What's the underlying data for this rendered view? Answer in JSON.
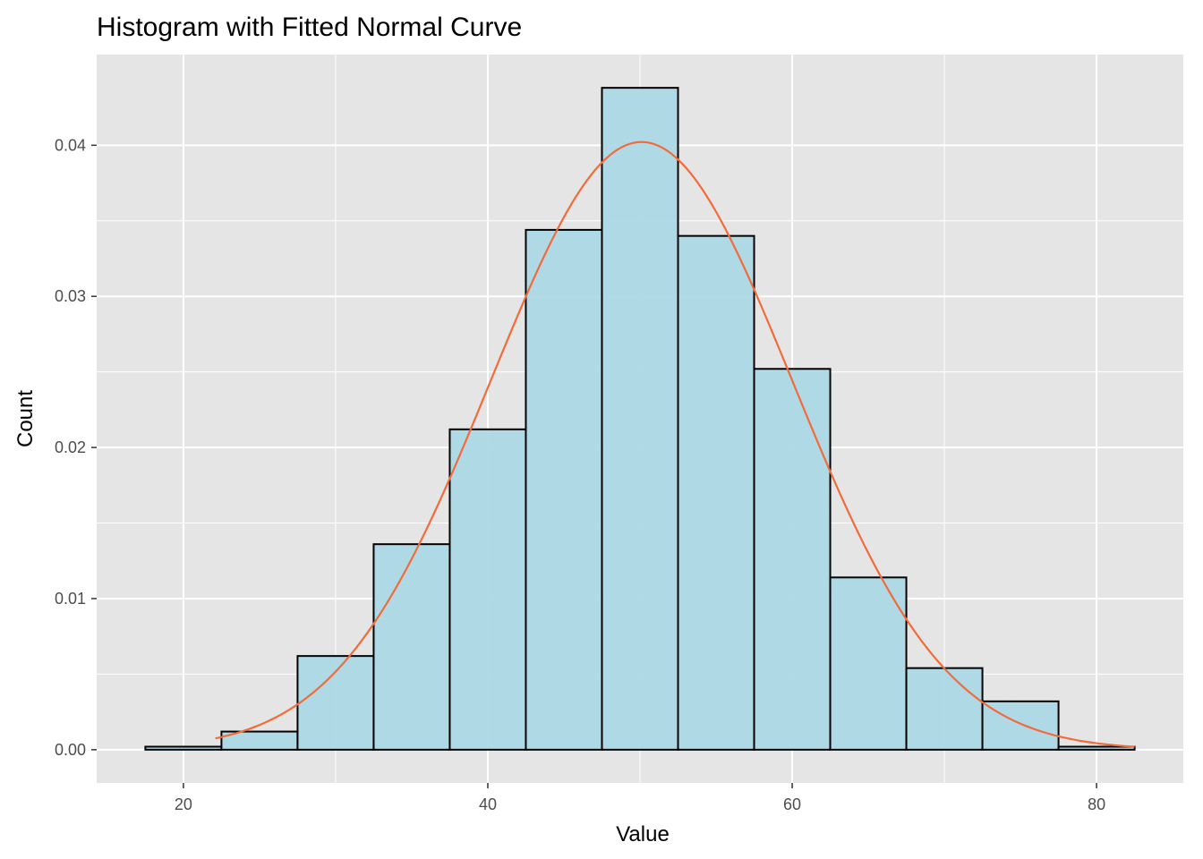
{
  "chart_data": {
    "type": "bar",
    "title": "Histogram with Fitted Normal Curve",
    "xlabel": "Value",
    "ylabel": "Count",
    "xlim": [
      14.3,
      85.7
    ],
    "ylim": [
      -0.0022,
      0.046
    ],
    "x_ticks": [
      20,
      40,
      60,
      80
    ],
    "x_tick_labels": [
      "20",
      "40",
      "60",
      "80"
    ],
    "y_ticks": [
      0.0,
      0.01,
      0.02,
      0.03,
      0.04
    ],
    "y_tick_labels": [
      "0.00",
      "0.01",
      "0.02",
      "0.03",
      "0.04"
    ],
    "grid": true,
    "histogram": {
      "bin_width": 5,
      "bin_starts": [
        17.5,
        22.5,
        27.5,
        32.5,
        37.5,
        42.5,
        47.5,
        52.5,
        57.5,
        62.5,
        67.5,
        72.5,
        77.5
      ],
      "values": [
        0.0002,
        0.0012,
        0.0062,
        0.0136,
        0.0212,
        0.0344,
        0.0438,
        0.034,
        0.0252,
        0.0114,
        0.0054,
        0.0032,
        0.0002
      ],
      "fill": "#add8e6",
      "stroke": "#000000"
    },
    "normal_curve": {
      "mean": 50.1,
      "sd": 9.92,
      "x_range": [
        22.1,
        82.5
      ],
      "color": "#f26b3a"
    },
    "panel_background": "#e5e5e5",
    "grid_color": "#ffffff"
  }
}
